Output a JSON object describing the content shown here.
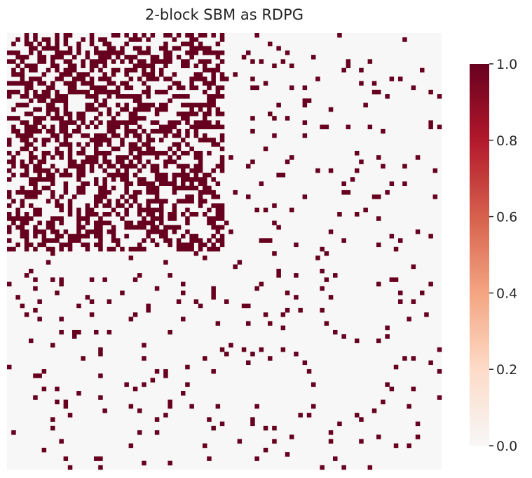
{
  "chart_data": {
    "type": "heatmap",
    "title": "2-block SBM as RDPG",
    "n_nodes": 100,
    "blocks": [
      {
        "size": 50,
        "within_block_edge_probability": 0.5
      },
      {
        "size": 50,
        "within_block_edge_probability": 0.04
      }
    ],
    "between_block_edge_probability": 0.04,
    "value_range": [
      0.0,
      1.0
    ],
    "cell_values": [
      0,
      1
    ],
    "colormap": "RdBu_r (upper half)",
    "colors": {
      "zero": "#f7f7f7",
      "one": "#67001f",
      "gradient": [
        "#f7f7f7",
        "#fddbc7",
        "#f4a582",
        "#d6604d",
        "#b2182b",
        "#67001f"
      ]
    },
    "colorbar": {
      "ticks": [
        "0.0",
        "0.2",
        "0.4",
        "0.6",
        "0.8",
        "1.0"
      ]
    },
    "axis_tick_labels": "none",
    "grid": false
  }
}
